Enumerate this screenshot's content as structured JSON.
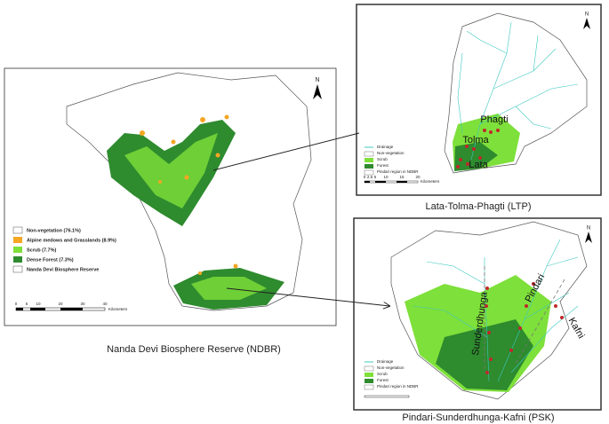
{
  "ndbr": {
    "legend": [
      "Non-vegetation (76.1%)",
      "Alpine medows and Grasslands (8.9%)",
      "Scrub (7.7%)",
      "Dense Forest (7.3%)",
      "Nanda Devi Biosphere Reserve"
    ],
    "legend_colors": [
      "#ffffff",
      "#f5a623",
      "#7ee03a",
      "#2e8b2e",
      "#ffffff"
    ],
    "scale": [
      "0",
      "5",
      "10",
      "20",
      "30",
      "40",
      "Kilometers"
    ],
    "north": "N",
    "caption": "Nanda Devi Biosphere Reserve (NDBR)"
  },
  "ltp": {
    "legend": [
      "Drainage",
      "Non-vegetation",
      "Scrub",
      "Forest",
      "Pindari region in NDBR"
    ],
    "places": [
      "Phagti",
      "Tolma",
      "Lata"
    ],
    "scale": [
      "0",
      "2.5",
      "5",
      "10",
      "15",
      "20",
      "Kilometers"
    ],
    "north": "N",
    "caption": "Lata-Tolma-Phagti (LTP)"
  },
  "psk": {
    "legend": [
      "Drainage",
      "Non-vegetation",
      "Scrub",
      "Forest",
      "Pindari region in NDBR"
    ],
    "places": [
      "Sunderdhunga",
      "Pindari",
      "Kafni"
    ],
    "north": "N",
    "caption": "Pindari-Sunderdhunga-Kafni (PSK)"
  }
}
